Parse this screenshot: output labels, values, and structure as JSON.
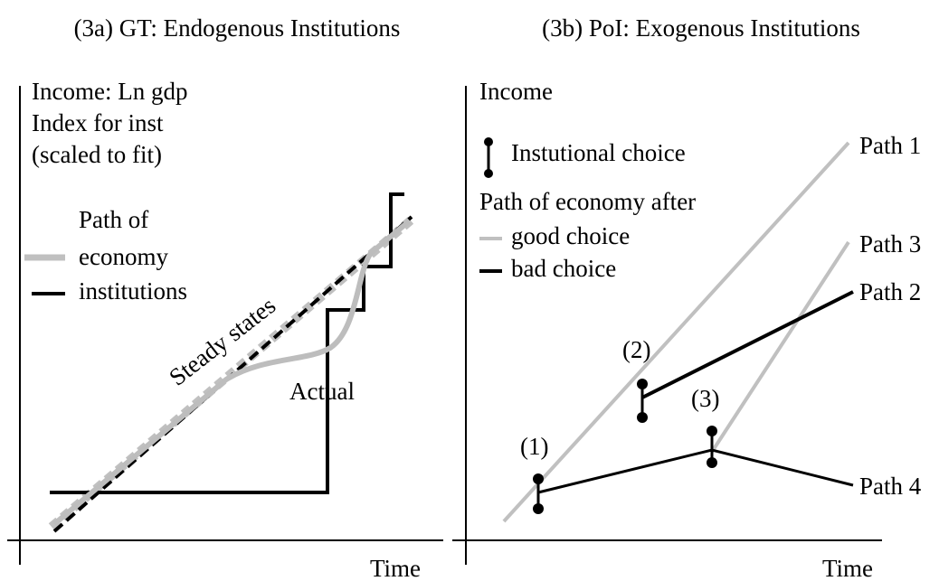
{
  "panels": [
    {
      "title": "(3a) GT: Endogenous Institutions",
      "y_axis": [
        "Income: Ln gdp",
        "Index for inst",
        "(scaled to fit)"
      ],
      "legend": {
        "heading": "Path of",
        "items": [
          "economy",
          "institutions"
        ]
      },
      "annotations": {
        "steady": "Steady states",
        "actual": "Actual"
      },
      "x_axis": "Time"
    },
    {
      "title": "(3b) PoI: Exogenous Institutions",
      "y_axis": "Income",
      "legend": {
        "marker": "Instutional choice",
        "heading": "Path of economy after",
        "items": [
          "good choice",
          "bad choice"
        ]
      },
      "points": [
        "(1)",
        "(2)",
        "(3)"
      ],
      "paths": [
        "Path 1",
        "Path 3",
        "Path 2",
        "Path 4"
      ],
      "x_axis": "Time"
    }
  ]
}
